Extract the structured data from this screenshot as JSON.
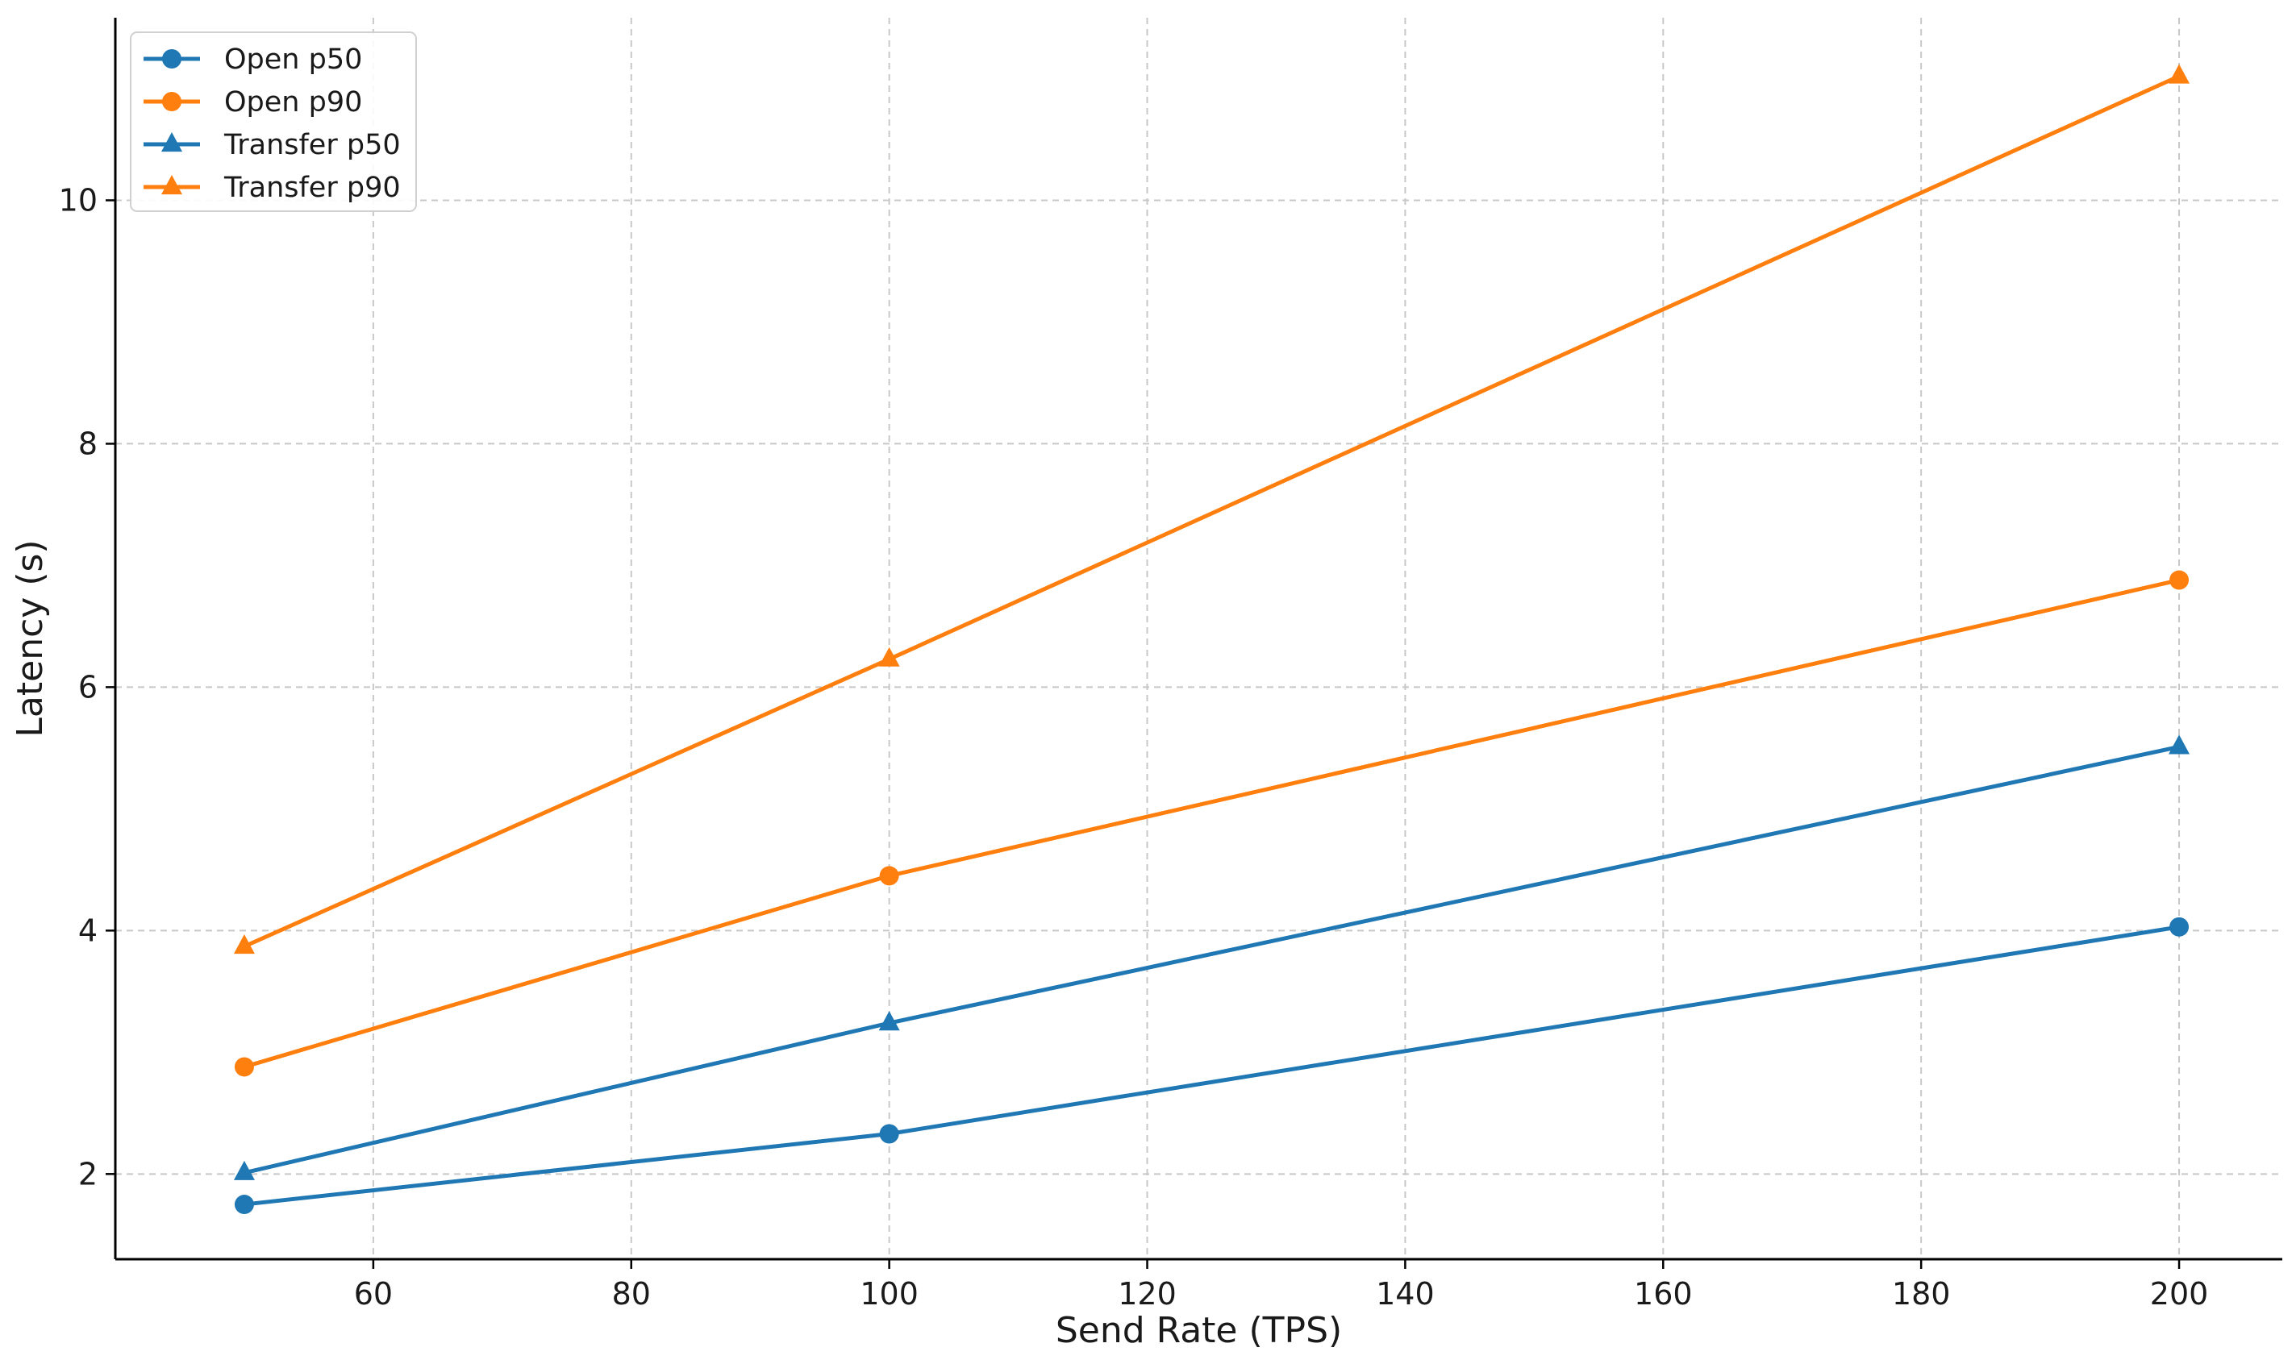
{
  "chart_data": {
    "type": "line",
    "title": "",
    "xlabel": "Send Rate (TPS)",
    "ylabel": "Latency (s)",
    "x": [
      50,
      100,
      200
    ],
    "xlim": [
      40,
      208
    ],
    "ylim": [
      1.3,
      11.5
    ],
    "xticks": [
      60,
      80,
      100,
      120,
      140,
      160,
      180,
      200
    ],
    "yticks": [
      2,
      4,
      6,
      8,
      10
    ],
    "grid": true,
    "legend_position": "top-left",
    "series": [
      {
        "name": "Open p50",
        "values": [
          1.75,
          2.33,
          4.03
        ],
        "color": "#1f77b4",
        "marker": "circle"
      },
      {
        "name": "Open p90",
        "values": [
          2.88,
          4.45,
          6.88
        ],
        "color": "#ff7f0e",
        "marker": "circle"
      },
      {
        "name": "Transfer p50",
        "values": [
          2.01,
          3.24,
          5.51
        ],
        "color": "#1f77b4",
        "marker": "triangle"
      },
      {
        "name": "Transfer p90",
        "values": [
          3.87,
          6.23,
          11.02
        ],
        "color": "#ff7f0e",
        "marker": "triangle"
      }
    ]
  }
}
